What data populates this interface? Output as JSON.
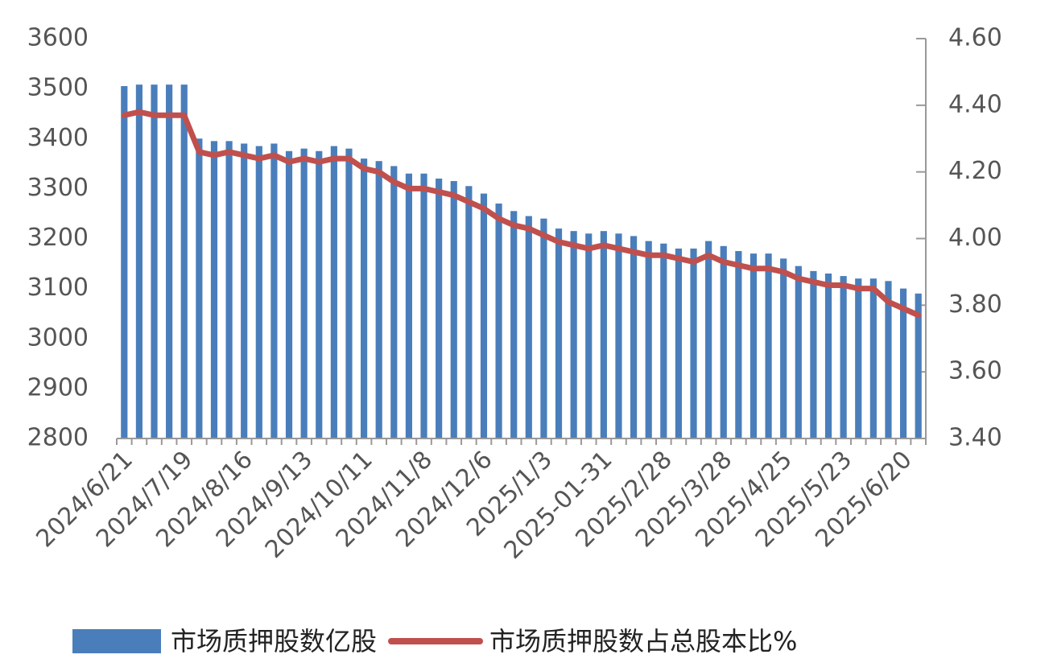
{
  "chart_data": {
    "type": "bar_line",
    "categories": [
      "2024/6/21",
      null,
      null,
      null,
      "2024/7/19",
      null,
      null,
      null,
      "2024/8/16",
      null,
      null,
      null,
      "2024/9/13",
      null,
      null,
      null,
      "2024/10/11",
      null,
      null,
      null,
      "2024/11/8",
      null,
      null,
      null,
      "2024/12/6",
      null,
      null,
      null,
      "2025/1/3",
      null,
      null,
      null,
      "2025-01-31",
      null,
      null,
      null,
      "2025/2/28",
      null,
      null,
      null,
      "2025/3/28",
      null,
      null,
      null,
      "2025/4/25",
      null,
      null,
      null,
      "2025/5/23",
      null,
      null,
      null,
      "2025/6/20",
      null
    ],
    "series": [
      {
        "name": "市场质押股数亿股",
        "color": "#4a7ebb",
        "type": "bar",
        "axis": "y",
        "values": [
          3505,
          3508,
          3508,
          3508,
          3508,
          3400,
          3395,
          3395,
          3390,
          3385,
          3390,
          3375,
          3380,
          3375,
          3385,
          3380,
          3360,
          3355,
          3345,
          3330,
          3330,
          3320,
          3315,
          3305,
          3290,
          3270,
          3255,
          3245,
          3240,
          3220,
          3215,
          3210,
          3215,
          3210,
          3205,
          3195,
          3190,
          3180,
          3180,
          3195,
          3185,
          3175,
          3170,
          3170,
          3160,
          3145,
          3135,
          3130,
          3125,
          3120,
          3120,
          3115,
          3100,
          3090
        ]
      },
      {
        "name": "市场质押股数占总股本比%",
        "color": "#c0504d",
        "type": "line",
        "axis": "y2",
        "values": [
          4.37,
          4.38,
          4.37,
          4.37,
          4.37,
          4.26,
          4.25,
          4.26,
          4.25,
          4.24,
          4.25,
          4.23,
          4.24,
          4.23,
          4.24,
          4.24,
          4.21,
          4.2,
          4.17,
          4.15,
          4.15,
          4.14,
          4.13,
          4.11,
          4.09,
          4.06,
          4.04,
          4.03,
          4.01,
          3.99,
          3.98,
          3.97,
          3.98,
          3.97,
          3.96,
          3.95,
          3.95,
          3.94,
          3.93,
          3.95,
          3.93,
          3.92,
          3.91,
          3.91,
          3.9,
          3.88,
          3.87,
          3.86,
          3.86,
          3.85,
          3.85,
          3.81,
          3.79,
          3.77
        ]
      }
    ],
    "ylim": [
      2800,
      3600
    ],
    "yticks": [
      2800,
      2900,
      3000,
      3100,
      3200,
      3300,
      3400,
      3500,
      3600
    ],
    "y2lim": [
      3.4,
      4.6
    ],
    "y2ticks": [
      {
        "value": 3.4,
        "label": "3.40"
      },
      {
        "value": 3.6,
        "label": "3.60"
      },
      {
        "value": 3.8,
        "label": "3.80"
      },
      {
        "value": 4.0,
        "label": "4.00"
      },
      {
        "value": 4.2,
        "label": "4.20"
      },
      {
        "value": 4.4,
        "label": "4.40"
      },
      {
        "value": 4.6,
        "label": "4.60"
      }
    ],
    "legend": "bottom"
  }
}
